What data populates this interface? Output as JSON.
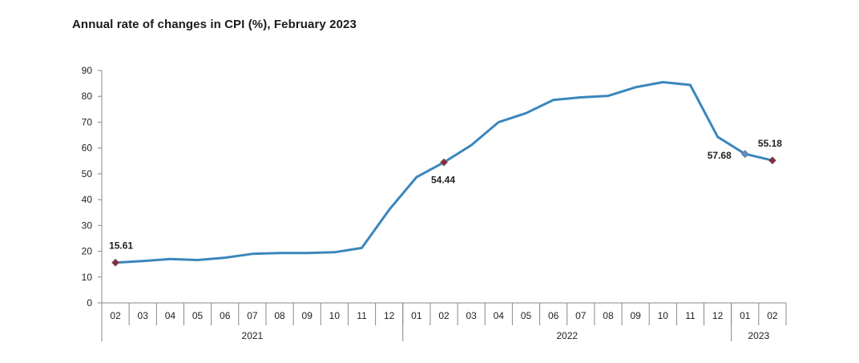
{
  "chart_data": {
    "type": "line",
    "title": "Annual rate of changes in CPI (%), February 2023",
    "xlabel": "",
    "ylabel": "",
    "ylim": [
      0,
      90
    ],
    "yticks": [
      "0",
      "10",
      "20",
      "30",
      "40",
      "50",
      "60",
      "70",
      "80",
      "90"
    ],
    "categories": [
      "02",
      "03",
      "04",
      "05",
      "06",
      "07",
      "08",
      "09",
      "10",
      "11",
      "12",
      "01",
      "02",
      "03",
      "04",
      "05",
      "06",
      "07",
      "08",
      "09",
      "10",
      "11",
      "12",
      "01",
      "02"
    ],
    "year_groups": [
      {
        "label": "2021",
        "start": 0,
        "end": 10
      },
      {
        "label": "2022",
        "start": 11,
        "end": 22
      },
      {
        "label": "2023",
        "start": 23,
        "end": 24
      }
    ],
    "series": [
      {
        "values": [
          15.61,
          16.2,
          17.0,
          16.6,
          17.5,
          19.0,
          19.3,
          19.3,
          19.6,
          21.3,
          36.1,
          48.7,
          54.44,
          61.1,
          70.0,
          73.5,
          78.6,
          79.6,
          80.2,
          83.5,
          85.5,
          84.4,
          64.3,
          57.68,
          55.18
        ]
      }
    ],
    "annotations": [
      {
        "index": 0,
        "text": "15.61",
        "position": "above"
      },
      {
        "index": 12,
        "text": "54.44",
        "position": "below"
      },
      {
        "index": 23,
        "text": "57.68",
        "position": "left"
      },
      {
        "index": 24,
        "text": "55.18",
        "position": "above"
      }
    ],
    "colors": {
      "line": "#3a86bc",
      "marker": "#8b2a3c",
      "marker_2023": "#5b8fc7"
    },
    "grid": false,
    "legend": "none"
  }
}
